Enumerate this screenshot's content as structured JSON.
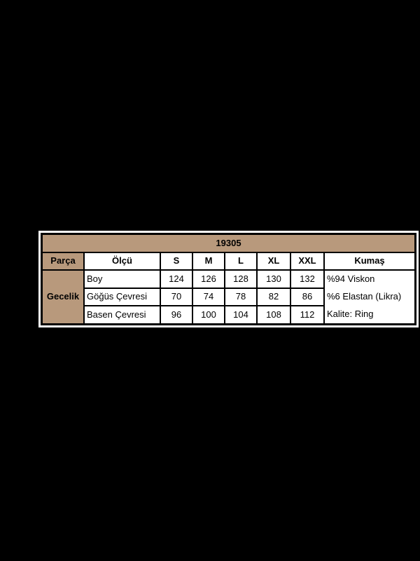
{
  "chart_data": {
    "type": "table",
    "title": "19305",
    "columns": [
      "Parça",
      "Ölçü",
      "S",
      "M",
      "L",
      "XL",
      "XXL",
      "Kumaş"
    ],
    "rows": [
      [
        "Gecelik",
        "Boy",
        124,
        126,
        128,
        130,
        132,
        "%94 Viskon"
      ],
      [
        "Gecelik",
        "Göğüs Çevresi",
        70,
        74,
        78,
        82,
        86,
        "%6 Elastan (Likra)"
      ],
      [
        "Gecelik",
        "Basen Çevresi",
        96,
        100,
        104,
        108,
        112,
        "Kalite: Ring"
      ]
    ],
    "layout_notes": "product size chart table on black page; first column and title row have tan background; Gecelik and Kumaş cells span 3 rows"
  },
  "colors": {
    "page_background": "#000000",
    "header_tan": "#b8997c",
    "cell_background": "#ffffff",
    "border": "#000000",
    "table_outline": "#ffffff"
  }
}
